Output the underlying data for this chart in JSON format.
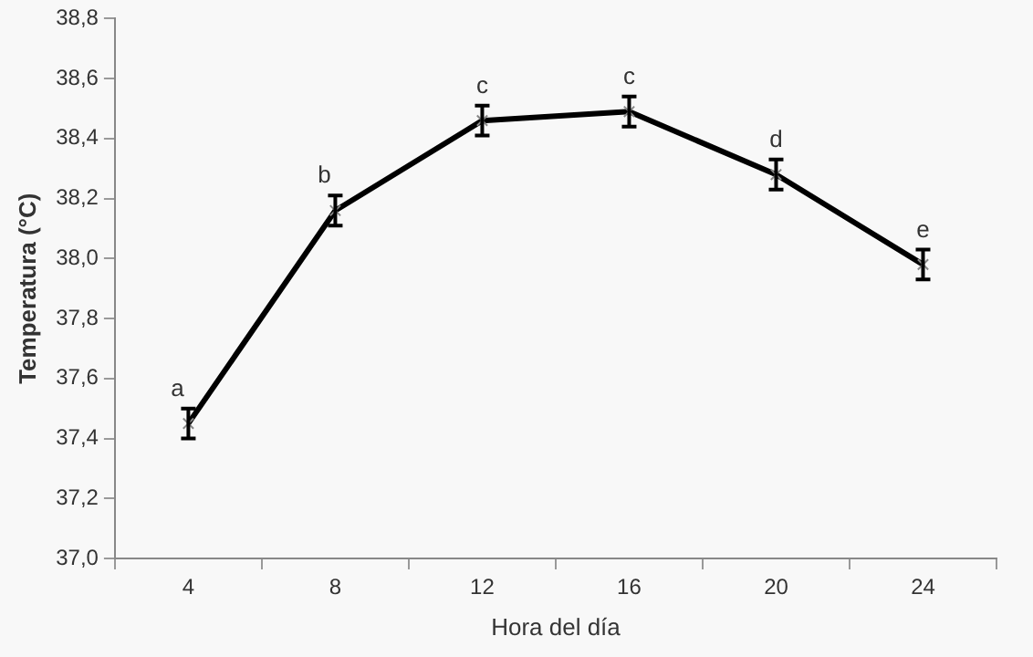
{
  "chart_data": {
    "type": "line",
    "xlabel": "Hora del día",
    "ylabel": "Temperatura (°C)",
    "categories": [
      "4",
      "8",
      "12",
      "16",
      "20",
      "24"
    ],
    "series": [
      {
        "color": "#000000",
        "values": [
          37.45,
          38.16,
          38.46,
          38.49,
          38.28,
          37.98
        ],
        "errors": [
          0.05,
          0.05,
          0.05,
          0.05,
          0.05,
          0.05
        ]
      }
    ],
    "ylim": [
      37.0,
      38.8
    ],
    "yticks": [
      {
        "value": 37.0,
        "label": "37,0"
      },
      {
        "value": 37.2,
        "label": "37,2"
      },
      {
        "value": 37.4,
        "label": "37,4"
      },
      {
        "value": 37.6,
        "label": "37,6"
      },
      {
        "value": 37.8,
        "label": "37,8"
      },
      {
        "value": 38.0,
        "label": "38,0"
      },
      {
        "value": 38.2,
        "label": "38,2"
      },
      {
        "value": 38.4,
        "label": "38,4"
      },
      {
        "value": 38.6,
        "label": "38,6"
      },
      {
        "value": 38.8,
        "label": "38,8"
      }
    ],
    "annotations": [
      {
        "text": "a",
        "x": "4",
        "y": 37.45
      },
      {
        "text": "b",
        "x": "8",
        "y": 38.16
      },
      {
        "text": "c",
        "x": "12",
        "y": 38.46
      },
      {
        "text": "c",
        "x": "16",
        "y": 38.49
      },
      {
        "text": "d",
        "x": "20",
        "y": 38.28
      },
      {
        "text": "e",
        "x": "24",
        "y": 37.98
      }
    ],
    "grid": false,
    "legend": false,
    "marker": "cross",
    "line_style": "solid"
  }
}
